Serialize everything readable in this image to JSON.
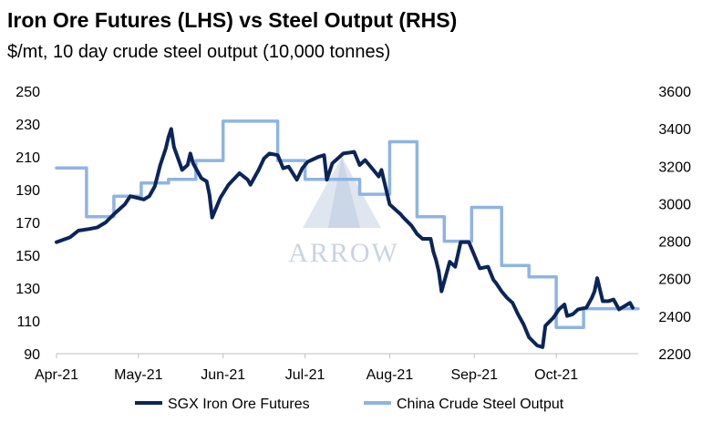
{
  "chart_data": {
    "type": "line",
    "title": "Iron Ore Futures (LHS) vs Steel Output (RHS)",
    "subtitle": "$/mt, 10 day crude steel output (10,000 tonnes)",
    "watermark": "ARROW",
    "x_ticks": [
      "Apr-21",
      "May-21",
      "Jun-21",
      "Jul-21",
      "Aug-21",
      "Sep-21",
      "Oct-21"
    ],
    "xlim": [
      "2021-04-01",
      "2021-10-31"
    ],
    "y_left": {
      "lim": [
        90,
        250
      ],
      "ticks": [
        "90",
        "110",
        "130",
        "150",
        "170",
        "190",
        "210",
        "230",
        "250"
      ]
    },
    "y_right": {
      "lim": [
        2200,
        3600
      ],
      "ticks": [
        "2200",
        "2400",
        "2600",
        "2800",
        "3000",
        "3200",
        "3400",
        "3600"
      ]
    },
    "grid": false,
    "legend_position": "bottom",
    "colors": {
      "iron": "#0b2559",
      "steel": "#8eb4e3"
    },
    "series": [
      {
        "name": "SGX Iron Ore Futures",
        "axis": "left",
        "points": [
          [
            "2021-04-01",
            158
          ],
          [
            "2021-04-06",
            161
          ],
          [
            "2021-04-09",
            165
          ],
          [
            "2021-04-13",
            166
          ],
          [
            "2021-04-16",
            167
          ],
          [
            "2021-04-19",
            170
          ],
          [
            "2021-04-22",
            175
          ],
          [
            "2021-04-26",
            181
          ],
          [
            "2021-04-28",
            186
          ],
          [
            "2021-05-03",
            184
          ],
          [
            "2021-05-05",
            186
          ],
          [
            "2021-05-07",
            192
          ],
          [
            "2021-05-09",
            205
          ],
          [
            "2021-05-11",
            215
          ],
          [
            "2021-05-12",
            222
          ],
          [
            "2021-05-13",
            227
          ],
          [
            "2021-05-14",
            216
          ],
          [
            "2021-05-17",
            202
          ],
          [
            "2021-05-19",
            205
          ],
          [
            "2021-05-20",
            212
          ],
          [
            "2021-05-21",
            206
          ],
          [
            "2021-05-24",
            197
          ],
          [
            "2021-05-26",
            195
          ],
          [
            "2021-05-27",
            187
          ],
          [
            "2021-05-28",
            173
          ],
          [
            "2021-05-31",
            185
          ],
          [
            "2021-06-03",
            193
          ],
          [
            "2021-06-07",
            200
          ],
          [
            "2021-06-10",
            196
          ],
          [
            "2021-06-11",
            193
          ],
          [
            "2021-06-14",
            202
          ],
          [
            "2021-06-16",
            209
          ],
          [
            "2021-06-18",
            212
          ],
          [
            "2021-06-21",
            211
          ],
          [
            "2021-06-23",
            203
          ],
          [
            "2021-06-25",
            204
          ],
          [
            "2021-06-28",
            196
          ],
          [
            "2021-06-30",
            203
          ],
          [
            "2021-07-02",
            207
          ],
          [
            "2021-07-06",
            210
          ],
          [
            "2021-07-08",
            211
          ],
          [
            "2021-07-09",
            196
          ],
          [
            "2021-07-11",
            206
          ],
          [
            "2021-07-13",
            209
          ],
          [
            "2021-07-15",
            212
          ],
          [
            "2021-07-19",
            213
          ],
          [
            "2021-07-21",
            205
          ],
          [
            "2021-07-23",
            208
          ],
          [
            "2021-07-26",
            202
          ],
          [
            "2021-07-28",
            198
          ],
          [
            "2021-07-29",
            202
          ],
          [
            "2021-07-30",
            195
          ],
          [
            "2021-08-01",
            181
          ],
          [
            "2021-08-03",
            178
          ],
          [
            "2021-08-05",
            175
          ],
          [
            "2021-08-06",
            173
          ],
          [
            "2021-08-09",
            168
          ],
          [
            "2021-08-11",
            163
          ],
          [
            "2021-08-13",
            160
          ],
          [
            "2021-08-16",
            160
          ],
          [
            "2021-08-17",
            152
          ],
          [
            "2021-08-18",
            147
          ],
          [
            "2021-08-19",
            140
          ],
          [
            "2021-08-20",
            128
          ],
          [
            "2021-08-23",
            146
          ],
          [
            "2021-08-25",
            143
          ],
          [
            "2021-08-27",
            158
          ],
          [
            "2021-08-30",
            158
          ],
          [
            "2021-09-01",
            150
          ],
          [
            "2021-09-03",
            142
          ],
          [
            "2021-09-06",
            143
          ],
          [
            "2021-09-08",
            135
          ],
          [
            "2021-09-09",
            133
          ],
          [
            "2021-09-11",
            128
          ],
          [
            "2021-09-13",
            124
          ],
          [
            "2021-09-15",
            121
          ],
          [
            "2021-09-17",
            114
          ],
          [
            "2021-09-19",
            108
          ],
          [
            "2021-09-21",
            100
          ],
          [
            "2021-09-24",
            95
          ],
          [
            "2021-09-26",
            94
          ],
          [
            "2021-09-27",
            107
          ],
          [
            "2021-09-30",
            112
          ],
          [
            "2021-10-02",
            117
          ],
          [
            "2021-10-04",
            120
          ],
          [
            "2021-10-05",
            113
          ],
          [
            "2021-10-07",
            114
          ],
          [
            "2021-10-09",
            117
          ],
          [
            "2021-10-12",
            118
          ],
          [
            "2021-10-14",
            124
          ],
          [
            "2021-10-15",
            128
          ],
          [
            "2021-10-16",
            136
          ],
          [
            "2021-10-18",
            122
          ],
          [
            "2021-10-20",
            122
          ],
          [
            "2021-10-22",
            123
          ],
          [
            "2021-10-24",
            117
          ],
          [
            "2021-10-26",
            119
          ],
          [
            "2021-10-28",
            121
          ],
          [
            "2021-10-29",
            118
          ]
        ]
      },
      {
        "name": "China Crude Steel Output",
        "axis": "right",
        "points": [
          [
            "2021-04-01",
            3190
          ],
          [
            "2021-04-12",
            3190
          ],
          [
            "2021-04-12",
            2930
          ],
          [
            "2021-04-22",
            2930
          ],
          [
            "2021-04-22",
            3040
          ],
          [
            "2021-05-02",
            3040
          ],
          [
            "2021-05-02",
            3110
          ],
          [
            "2021-05-12",
            3110
          ],
          [
            "2021-05-12",
            3130
          ],
          [
            "2021-05-22",
            3130
          ],
          [
            "2021-05-22",
            3230
          ],
          [
            "2021-06-01",
            3230
          ],
          [
            "2021-06-01",
            3440
          ],
          [
            "2021-06-21",
            3440
          ],
          [
            "2021-06-21",
            3230
          ],
          [
            "2021-07-01",
            3230
          ],
          [
            "2021-07-01",
            3130
          ],
          [
            "2021-07-21",
            3130
          ],
          [
            "2021-07-21",
            3050
          ],
          [
            "2021-08-01",
            3050
          ],
          [
            "2021-08-01",
            3330
          ],
          [
            "2021-08-11",
            3330
          ],
          [
            "2021-08-11",
            2930
          ],
          [
            "2021-08-21",
            2930
          ],
          [
            "2021-08-21",
            2800
          ],
          [
            "2021-08-31",
            2800
          ],
          [
            "2021-08-31",
            2980
          ],
          [
            "2021-09-11",
            2980
          ],
          [
            "2021-09-11",
            2670
          ],
          [
            "2021-09-21",
            2670
          ],
          [
            "2021-09-21",
            2610
          ],
          [
            "2021-10-01",
            2610
          ],
          [
            "2021-10-01",
            2340
          ],
          [
            "2021-10-11",
            2340
          ],
          [
            "2021-10-11",
            2440
          ],
          [
            "2021-10-31",
            2440
          ]
        ]
      }
    ]
  }
}
